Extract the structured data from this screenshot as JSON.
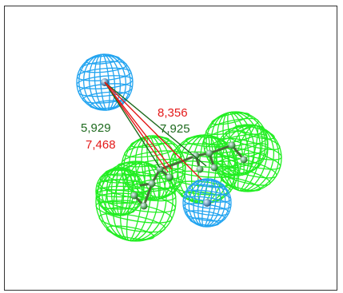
{
  "colors": {
    "hydrophobic_sphere": "#22ee22",
    "aromatic_sphere": "#22a4f0",
    "atom": "#1f5d8f",
    "atom_green": "#1d7a1d",
    "distance_red": "#e41919",
    "distance_green": "#1e6a1e",
    "frame_border": "#333333"
  },
  "distances": [
    {
      "label": "8,356",
      "color_key": "distance_red"
    },
    {
      "label": "5,929",
      "color_key": "distance_green"
    },
    {
      "label": "7,925",
      "color_key": "distance_green"
    },
    {
      "label": "7,468",
      "color_key": "distance_red"
    }
  ],
  "features": [
    {
      "type": "aromatic",
      "name": "aromatic-top-left"
    },
    {
      "type": "aromatic",
      "name": "aromatic-bottom-middle"
    },
    {
      "type": "hydrophobic",
      "name": "hydrophobic-1"
    },
    {
      "type": "hydrophobic",
      "name": "hydrophobic-2"
    },
    {
      "type": "hydrophobic",
      "name": "hydrophobic-3"
    },
    {
      "type": "hydrophobic",
      "name": "hydrophobic-4"
    },
    {
      "type": "hydrophobic",
      "name": "hydrophobic-5"
    },
    {
      "type": "hydrophobic",
      "name": "hydrophobic-6"
    }
  ]
}
